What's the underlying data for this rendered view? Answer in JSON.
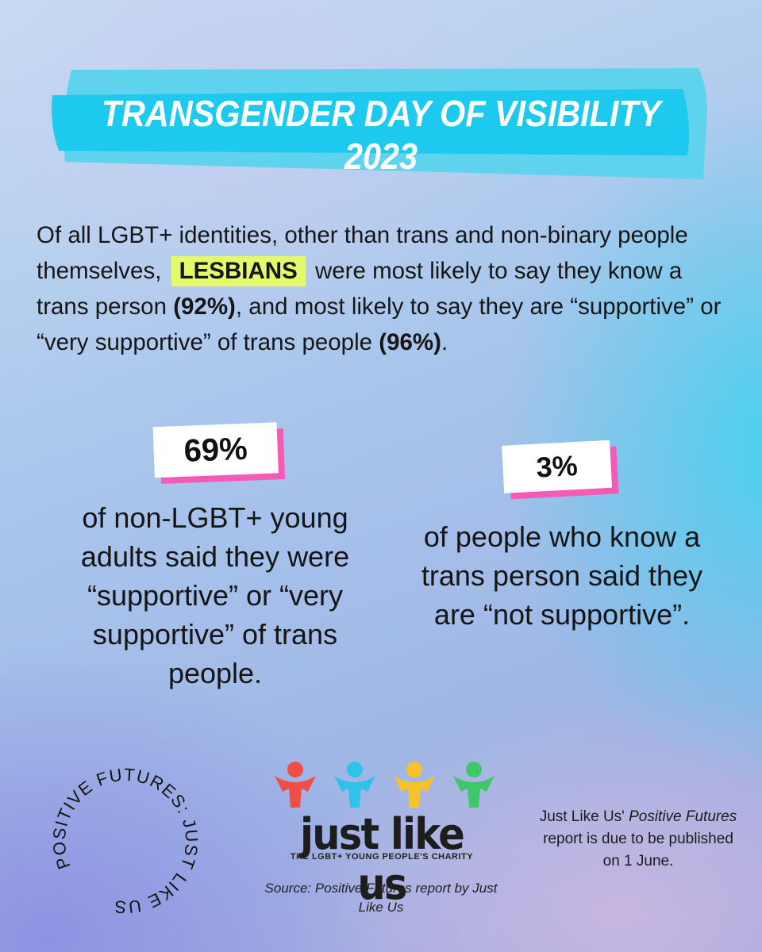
{
  "banner": {
    "title": "TRANSGENDER DAY OF VISIBILITY 2023",
    "colors": {
      "back": "#5fd3ee",
      "front": "#1ec9ef"
    }
  },
  "intro": {
    "part1": "Of all LGBT+ identities, other than trans and non-binary people themselves, ",
    "highlight": "LESBIANS",
    "part2": " were most likely to say they know a trans person ",
    "stat1": "(92%)",
    "part3": ", and most likely to say they are “supportive” or “very supportive” of trans people ",
    "stat2": "(96%)",
    "part4": ".",
    "highlight_color": "#e3fa6a"
  },
  "stats": [
    {
      "value": "69%",
      "description": "of non-LGBT+ young adults said they were “supportive” or “very supportive” of trans people."
    },
    {
      "value": "3%",
      "description": "of people who know a trans person said they are “not supportive”."
    }
  ],
  "accent_pink": "#f35bb7",
  "circular_text": "POSITIVE FUTURES: JUST LIKE US",
  "logo": {
    "figure_colors": [
      "#f04f47",
      "#2fc3ea",
      "#f8c22b",
      "#3fc86a"
    ],
    "wordmark": "just like us",
    "tagline": "THE LGBT+ YOUNG PEOPLE'S CHARITY"
  },
  "source_text": "Source: Positive Futures report by Just Like Us",
  "note": {
    "part1": "Just Like Us' ",
    "italic": "Positive Futures",
    "part2": " report is due to be published on 1 June."
  }
}
